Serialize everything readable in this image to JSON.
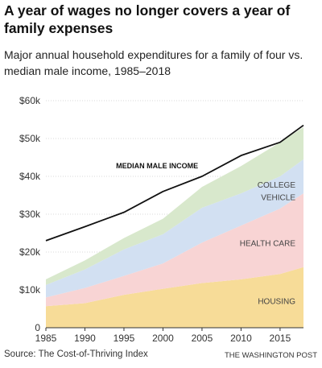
{
  "headline": "A year of wages no longer covers a year of family expenses",
  "subhead": "Major annual household expenditures for a family of four vs. median male income, 1985–2018",
  "source": "Source: The Cost-of-Thriving Index",
  "credit": "THE WASHINGTON POST",
  "chart_data": {
    "type": "area",
    "stacked": true,
    "title": "",
    "xlabel": "",
    "ylabel": "",
    "xlim": [
      1985,
      2018
    ],
    "ylim": [
      0,
      60000
    ],
    "x_ticks": [
      1985,
      1990,
      1995,
      2000,
      2005,
      2010,
      2015
    ],
    "x_tick_labels": [
      "1985",
      "1990",
      "1995",
      "2000",
      "2005",
      "2010",
      "2015"
    ],
    "y_ticks": [
      0,
      10000,
      20000,
      30000,
      40000,
      50000,
      60000
    ],
    "y_tick_labels": [
      "0",
      "$10k",
      "$20k",
      "$30k",
      "$40k",
      "$50k",
      "$60k"
    ],
    "grid": "horizontal",
    "x": [
      1985,
      1990,
      1995,
      2000,
      2005,
      2010,
      2015,
      2018
    ],
    "series": [
      {
        "name": "HOUSING",
        "color": "#f7dc98",
        "values": [
          5700,
          6500,
          8700,
          10300,
          11800,
          12800,
          14200,
          16000
        ]
      },
      {
        "name": "HEALTH CARE",
        "color": "#f8d4d4",
        "values": [
          2300,
          4000,
          5000,
          6700,
          10700,
          14200,
          17300,
          19500
        ]
      },
      {
        "name": "VEHICLE",
        "color": "#d2e0f2",
        "values": [
          3300,
          4900,
          7000,
          7700,
          9200,
          8500,
          8500,
          9000
        ]
      },
      {
        "name": "COLLEGE",
        "color": "#d8e8cc",
        "values": [
          1500,
          2400,
          3000,
          4100,
          5500,
          7200,
          9000,
          8500
        ]
      }
    ],
    "lines": [
      {
        "name": "MEDIAN MALE INCOME",
        "color": "#111111",
        "values": [
          23000,
          26700,
          30500,
          36000,
          40000,
          45500,
          49000,
          53500
        ]
      }
    ]
  }
}
